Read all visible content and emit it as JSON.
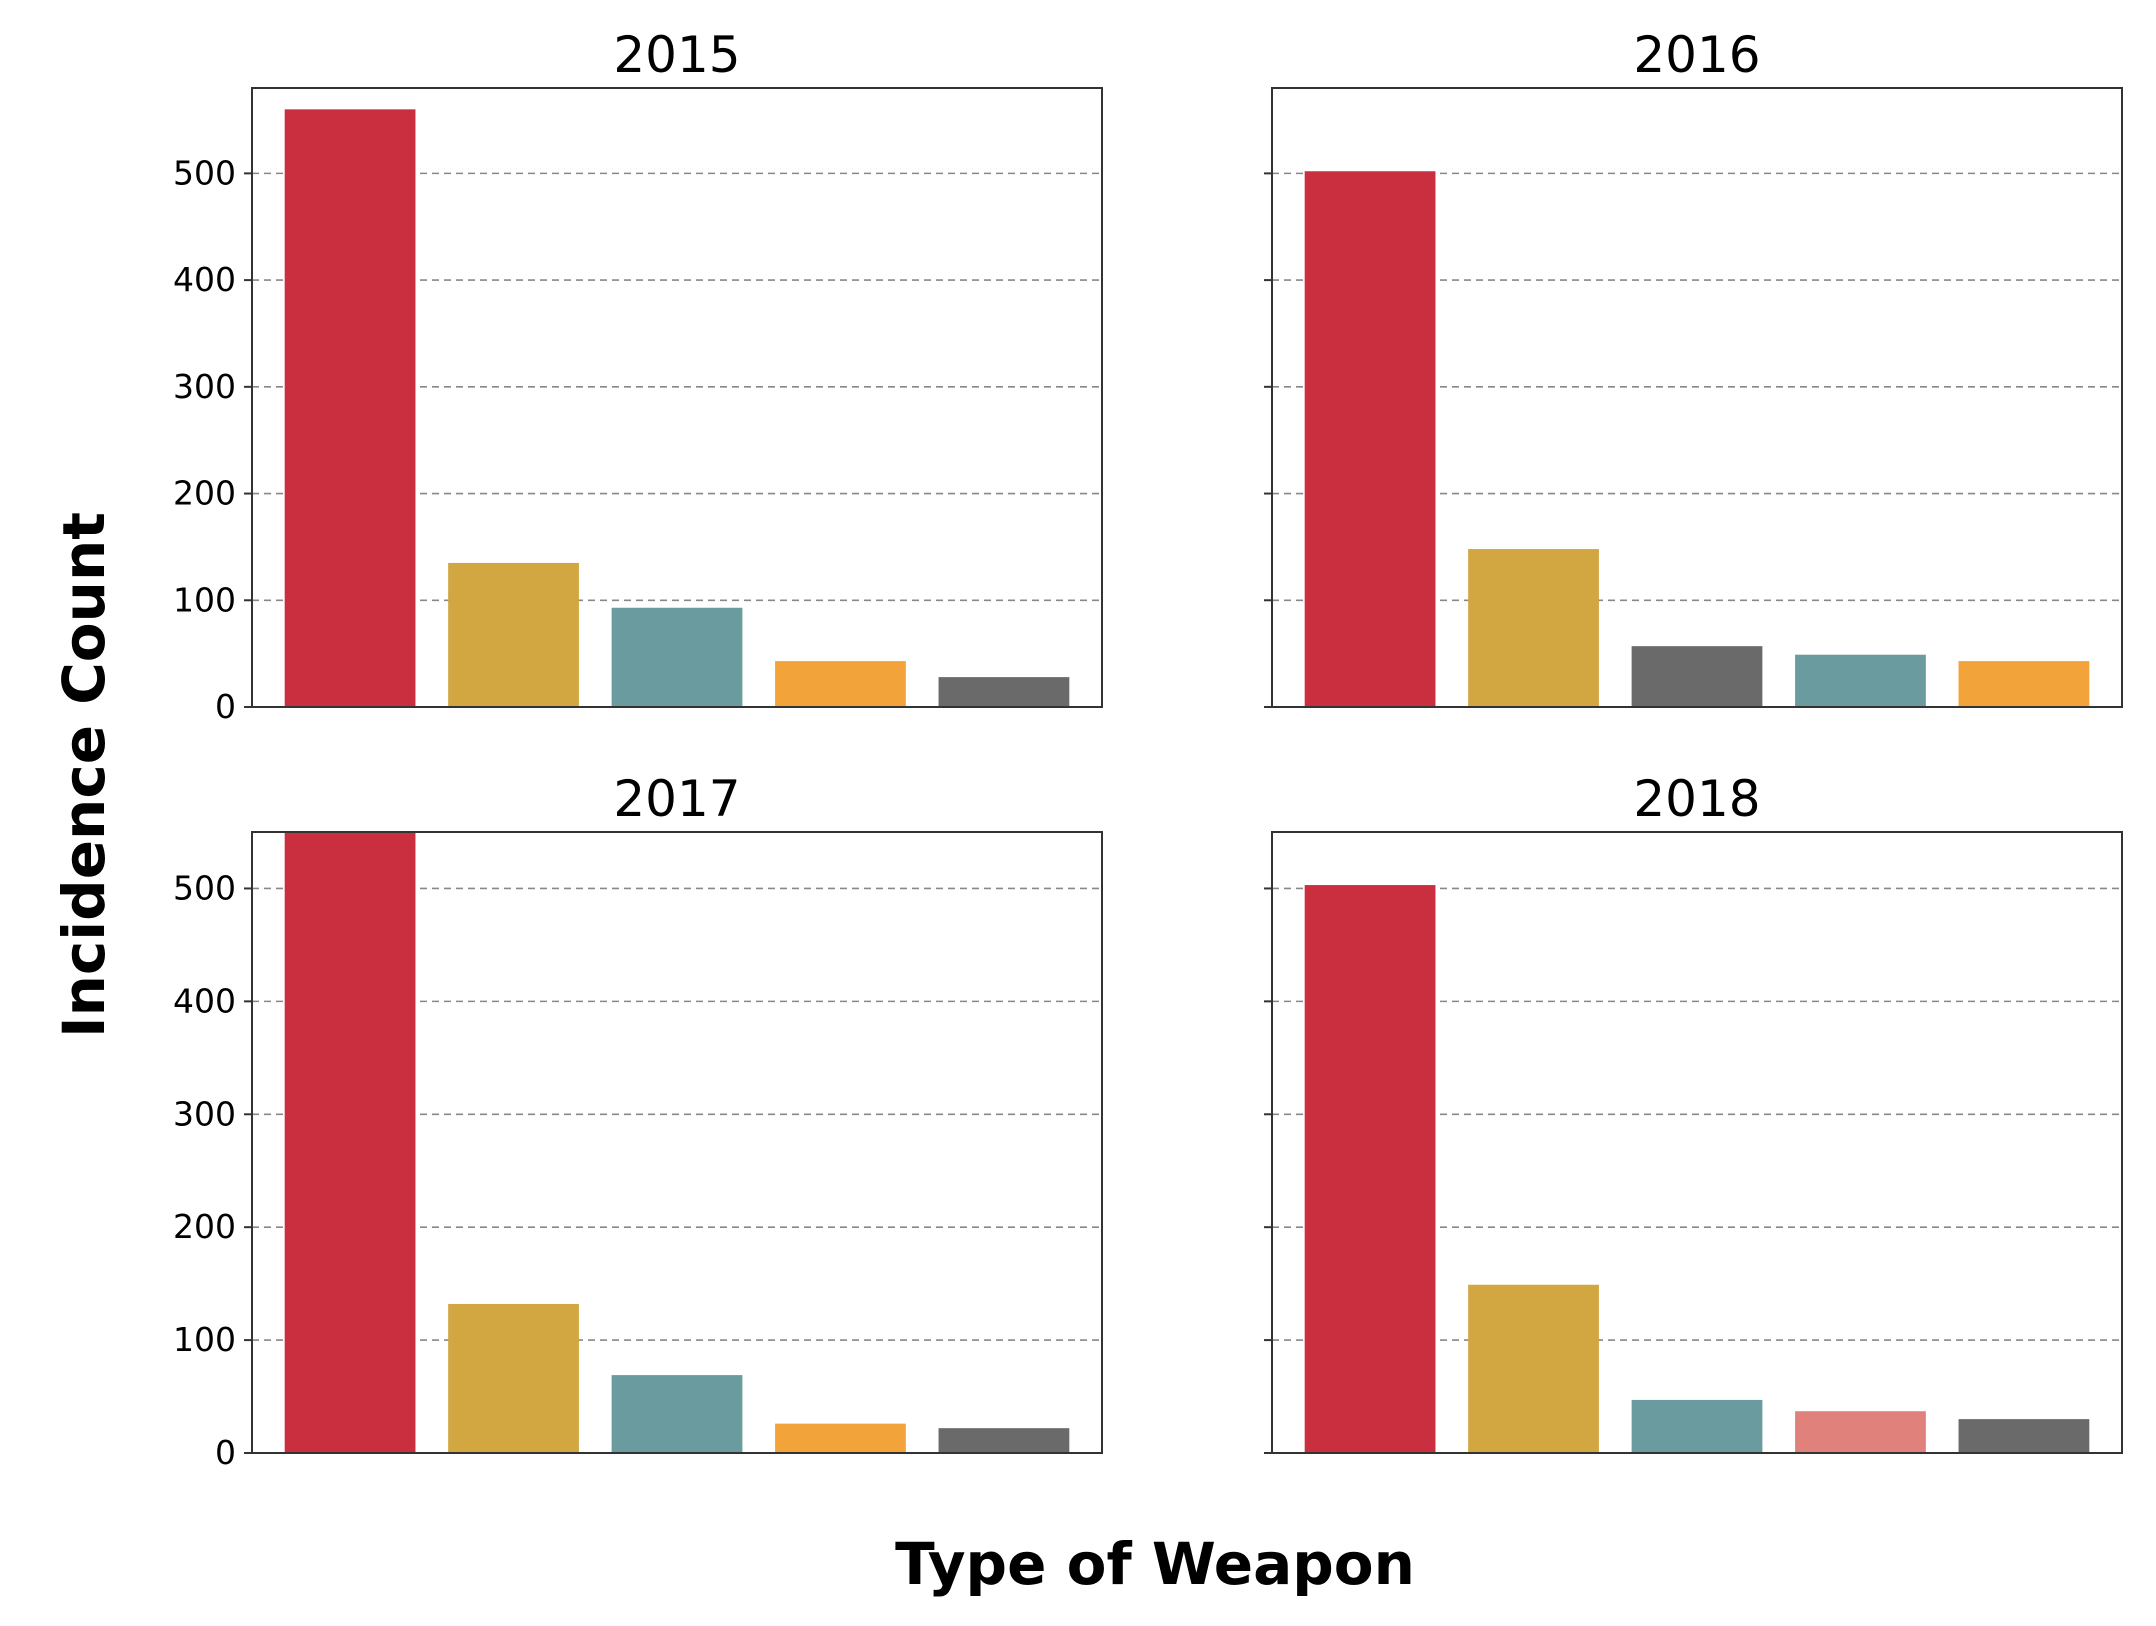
{
  "figure": {
    "ylabel": "Incidence Count",
    "xlabel": "Type of Weapon"
  },
  "chart_data": [
    {
      "type": "bar",
      "title": "2015",
      "ylim": [
        0,
        580
      ],
      "yticks": [
        0,
        100,
        200,
        300,
        400,
        500
      ],
      "show_ytick_labels": true,
      "grid": "y-dashed",
      "values": [
        560,
        135,
        93,
        43,
        28
      ],
      "colors": [
        "#c92f3f",
        "#d2a641",
        "#6a9c9f",
        "#f2a43a",
        "#6a6a6a"
      ]
    },
    {
      "type": "bar",
      "title": "2016",
      "ylim": [
        0,
        580
      ],
      "yticks": [
        0,
        100,
        200,
        300,
        400,
        500
      ],
      "show_ytick_labels": false,
      "grid": "y-dashed",
      "values": [
        502,
        148,
        57,
        49,
        43
      ],
      "colors": [
        "#c92f3f",
        "#d2a641",
        "#6a6a6a",
        "#6a9c9f",
        "#f2a43a"
      ]
    },
    {
      "type": "bar",
      "title": "2017",
      "ylim": [
        0,
        550
      ],
      "yticks": [
        0,
        100,
        200,
        300,
        400,
        500
      ],
      "show_ytick_labels": true,
      "grid": "y-dashed",
      "values": [
        552,
        132,
        69,
        26,
        22
      ],
      "colors": [
        "#c92f3f",
        "#d2a641",
        "#6a9c9f",
        "#f2a43a",
        "#6a6a6a"
      ]
    },
    {
      "type": "bar",
      "title": "2018",
      "ylim": [
        0,
        550
      ],
      "yticks": [
        0,
        100,
        200,
        300,
        400,
        500
      ],
      "show_ytick_labels": false,
      "grid": "y-dashed",
      "values": [
        503,
        149,
        47,
        37,
        30
      ],
      "colors": [
        "#c92f3f",
        "#d2a641",
        "#6a9c9f",
        "#e0817c",
        "#6a6a6a"
      ]
    }
  ]
}
